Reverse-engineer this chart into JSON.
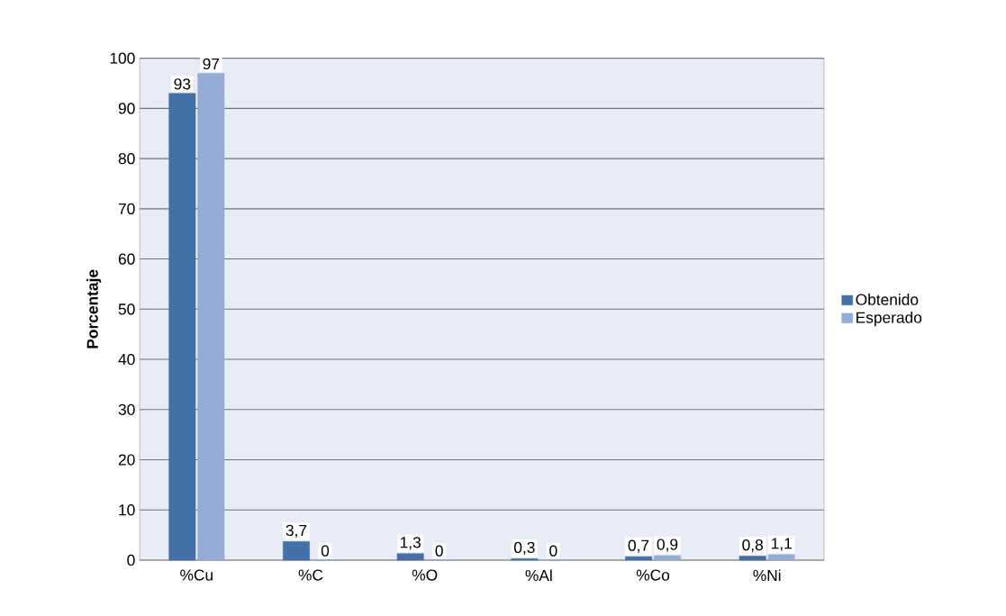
{
  "chart_data": {
    "type": "bar",
    "ylabel": "Porcentaje",
    "categories": [
      "%Cu",
      "%C",
      "%O",
      "%Al",
      "%Co",
      "%Ni"
    ],
    "series": [
      {
        "name": "Obtenido",
        "color": "#4470a8",
        "values": [
          93,
          3.7,
          1.3,
          0.3,
          0.7,
          0.8
        ],
        "value_labels": [
          "93",
          "3,7",
          "1,3",
          "0,3",
          "0,7",
          "0,8"
        ]
      },
      {
        "name": "Esperado",
        "color": "#95acd6",
        "values": [
          97,
          0,
          0,
          0,
          0.9,
          1.1
        ],
        "value_labels": [
          "97",
          "0",
          "0",
          "0",
          "0,9",
          "1,1"
        ]
      }
    ],
    "ylim": [
      0,
      100
    ],
    "yticks": [
      0,
      10,
      20,
      30,
      40,
      50,
      60,
      70,
      80,
      90,
      100
    ],
    "grid": "y",
    "legend": "right"
  }
}
